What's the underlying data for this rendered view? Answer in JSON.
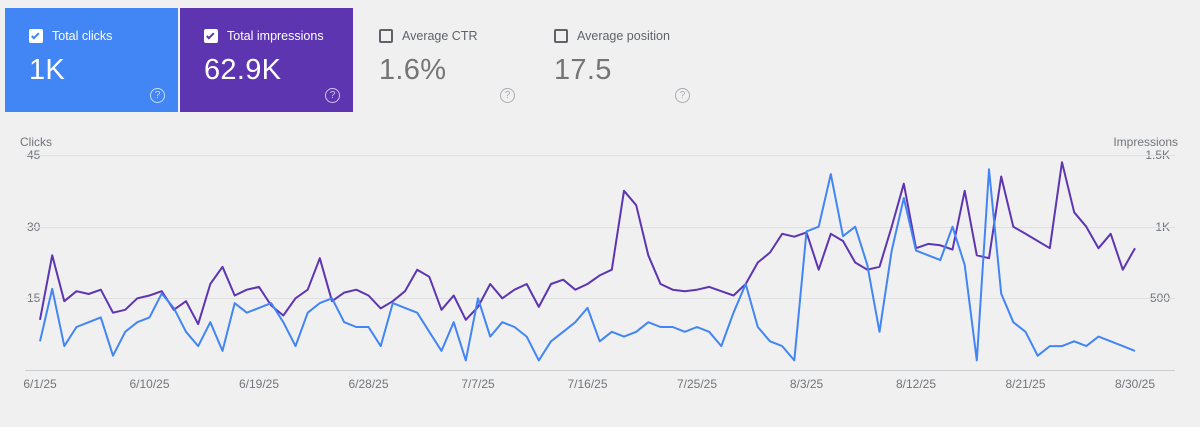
{
  "page": {
    "background": "#f0f0f1"
  },
  "icons": {
    "help": "?"
  },
  "cards": [
    {
      "id": "total-clicks",
      "label": "Total clicks",
      "value": "1K",
      "checked": true,
      "bg": "#4285f4",
      "label_color": "#ffffff",
      "value_color": "#ffffff",
      "help_color": "rgba(255,255,255,0.85)"
    },
    {
      "id": "total-impressions",
      "label": "Total impressions",
      "value": "62.9K",
      "checked": true,
      "bg": "#5e35b1",
      "label_color": "#ffffff",
      "value_color": "#ffffff",
      "help_color": "rgba(255,255,255,0.85)"
    },
    {
      "id": "average-ctr",
      "label": "Average CTR",
      "value": "1.6%",
      "checked": false,
      "bg": "transparent",
      "label_color": "#5f6368",
      "value_color": "#757575",
      "help_color": "#9aa0a6"
    },
    {
      "id": "average-position",
      "label": "Average position",
      "value": "17.5",
      "checked": false,
      "bg": "transparent",
      "label_color": "#5f6368",
      "value_color": "#757575",
      "help_color": "#9aa0a6"
    }
  ],
  "chart_data": {
    "type": "line",
    "x_start": "6/1/25",
    "x_end": "8/30/25",
    "x_unit": "day",
    "x_tick_labels": [
      "6/1/25",
      "6/10/25",
      "6/19/25",
      "6/28/25",
      "7/7/25",
      "7/16/25",
      "7/25/25",
      "8/3/25",
      "8/12/25",
      "8/21/25",
      "8/30/25"
    ],
    "left_axis": {
      "title": "Clicks",
      "max": 45,
      "min": 0,
      "ticks": [
        "45",
        "30",
        "15"
      ]
    },
    "right_axis": {
      "title": "Impressions",
      "max": 1500,
      "min": 0,
      "ticks": [
        "1.5K",
        "1K",
        "500"
      ]
    },
    "grid": "horizontal",
    "legend_position": "none",
    "series": [
      {
        "name": "Total clicks",
        "axis": "left",
        "color": "#4285f4",
        "values": [
          6,
          17,
          5,
          9,
          10,
          11,
          3,
          8,
          10,
          11,
          16,
          13,
          8,
          5,
          10,
          4,
          14,
          12,
          13,
          14,
          10,
          5,
          12,
          14,
          15,
          10,
          9,
          9,
          5,
          14,
          13,
          12,
          8,
          4,
          10,
          2,
          15,
          7,
          10,
          9,
          7,
          2,
          6,
          8,
          10,
          13,
          6,
          8,
          7,
          8,
          10,
          9,
          9,
          8,
          9,
          8,
          5,
          12,
          18,
          9,
          6,
          5,
          2,
          29,
          30,
          41,
          28,
          30,
          22,
          8,
          25,
          36,
          25,
          24,
          23,
          30,
          22,
          2,
          42,
          16,
          10,
          8,
          3,
          5,
          5,
          6,
          5,
          7,
          6,
          5,
          4
        ]
      },
      {
        "name": "Total impressions",
        "axis": "right",
        "color": "#5e35b1",
        "values": [
          350,
          800,
          480,
          550,
          530,
          560,
          400,
          420,
          500,
          520,
          550,
          420,
          480,
          320,
          600,
          720,
          520,
          560,
          580,
          450,
          380,
          500,
          560,
          780,
          480,
          540,
          560,
          520,
          430,
          480,
          550,
          700,
          650,
          420,
          520,
          350,
          440,
          600,
          500,
          560,
          600,
          440,
          600,
          630,
          560,
          600,
          660,
          700,
          1250,
          1150,
          800,
          600,
          560,
          550,
          560,
          580,
          550,
          520,
          600,
          750,
          820,
          950,
          930,
          960,
          700,
          950,
          900,
          750,
          700,
          720,
          1000,
          1300,
          850,
          880,
          870,
          840,
          1250,
          800,
          780,
          1350,
          1000,
          950,
          900,
          850,
          1450,
          1100,
          1000,
          850,
          950,
          700,
          850
        ]
      }
    ]
  }
}
